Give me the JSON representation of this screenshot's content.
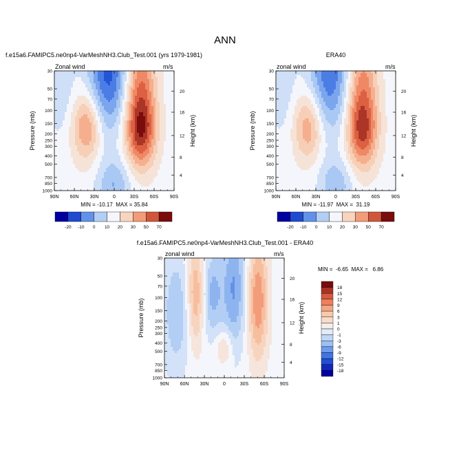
{
  "figure": {
    "title": "ANN"
  },
  "colors": {
    "neg_dark": "#0000a0",
    "neg_mid": "#2a62e0",
    "neg_light": "#9cc0f2",
    "neutral": "#f4f6fb",
    "pos_light": "#f8c9aa",
    "pos_mid": "#ec6e4a",
    "pos_dark": "#7a0c0c"
  },
  "chart_data": [
    {
      "id": "test",
      "type": "contour",
      "panel_title": "f.e15a6.FAMIPC5.ne0np4-VarMeshNH3.Club_Test.001 (yrs 1979-1981)",
      "field_label": "zonal wind",
      "field_label_display": "Zonal wind",
      "units": "m/s",
      "ylabel": "Pressure (mb)",
      "ylabel_right": "Height (km)",
      "x_ticks": [
        "90N",
        "60N",
        "30N",
        "0",
        "30S",
        "60S",
        "90S"
      ],
      "y_ticks": [
        "30",
        "50",
        "70",
        "100",
        "150",
        "200",
        "250",
        "300",
        "400",
        "500",
        "700",
        "850",
        "1000"
      ],
      "height_ticks": [
        "20",
        "16",
        "12",
        "8",
        "4"
      ],
      "stats_text": "MIN = -10.17  MAX = 35.84",
      "min": -10.17,
      "max": 35.84,
      "colorbar_labels": [
        "-20",
        "-10",
        "0",
        "10",
        "20",
        "30",
        "50",
        "70"
      ]
    },
    {
      "id": "era40",
      "type": "contour",
      "panel_title": "ERA40",
      "field_label": "zonal wind",
      "units": "m/s",
      "ylabel": "Pressure (mb)",
      "ylabel_right": "Height (km)",
      "x_ticks": [
        "90N",
        "60N",
        "30N",
        "0",
        "30S",
        "60S",
        "90S"
      ],
      "y_ticks": [
        "30",
        "50",
        "70",
        "100",
        "150",
        "200",
        "250",
        "300",
        "400",
        "500",
        "700",
        "850",
        "1000"
      ],
      "height_ticks": [
        "20",
        "16",
        "12",
        "8",
        "4"
      ],
      "stats_text": "MIN = -11.97  MAX =  31.19",
      "min": -11.97,
      "max": 31.19,
      "colorbar_labels": [
        "-20",
        "-10",
        "0",
        "10",
        "20",
        "30",
        "50",
        "70"
      ]
    },
    {
      "id": "diff",
      "type": "contour",
      "panel_title": "f.e15a6.FAMIPC5.ne0np4-VarMeshNH3.Club_Test.001 - ERA40",
      "field_label": "zonal wind",
      "units": "m/s",
      "ylabel": "Pressure (mb)",
      "ylabel_right": "Height (km)",
      "x_ticks": [
        "90N",
        "60N",
        "30N",
        "0",
        "30S",
        "60S",
        "90S"
      ],
      "y_ticks": [
        "30",
        "50",
        "70",
        "100",
        "150",
        "200",
        "250",
        "300",
        "400",
        "500",
        "700",
        "850",
        "1000"
      ],
      "height_ticks": [
        "20",
        "16",
        "12",
        "8",
        "4"
      ],
      "stats_text": "MIN =  -6.65  MAX =   6.86",
      "min": -6.65,
      "max": 6.86,
      "colorbar_labels": [
        "18",
        "15",
        "12",
        "9",
        "6",
        "3",
        "1",
        "0",
        "-1",
        "-3",
        "-6",
        "-9",
        "-12",
        "-15",
        "-18"
      ]
    }
  ]
}
